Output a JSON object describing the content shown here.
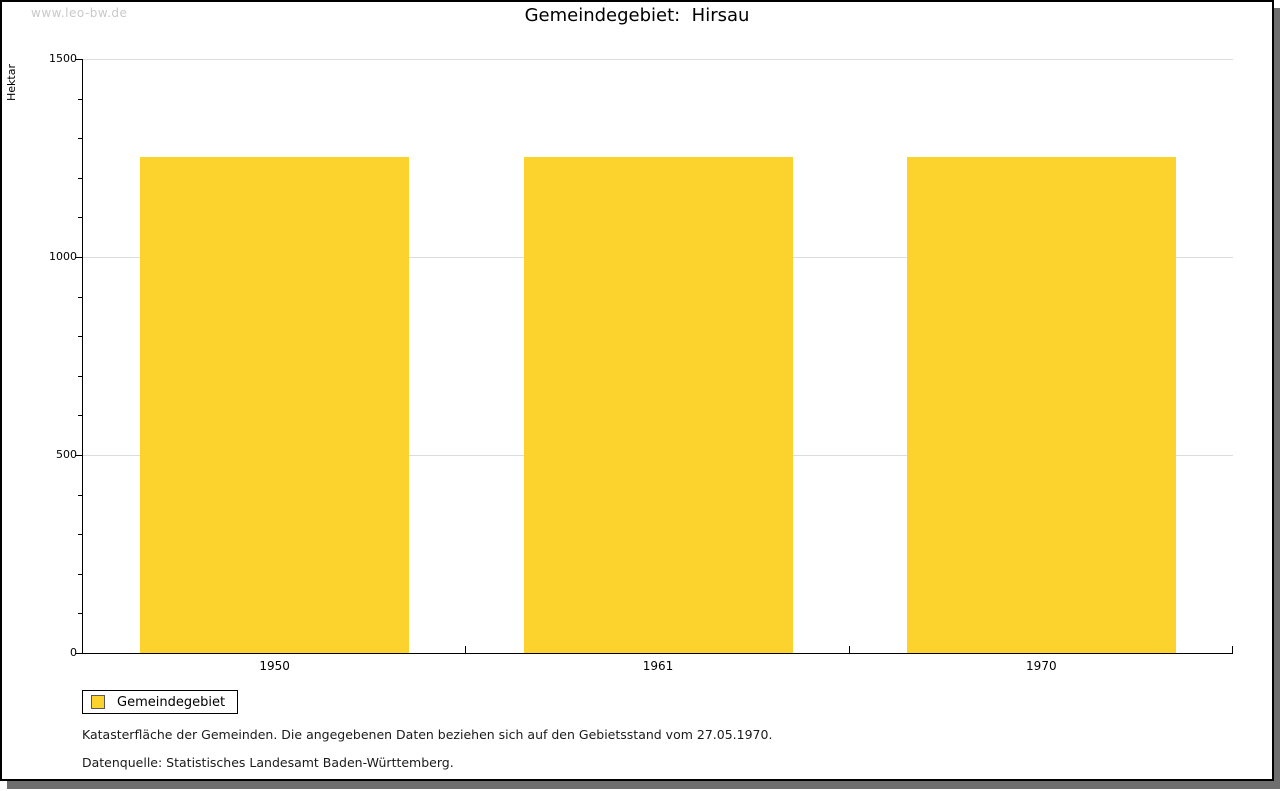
{
  "watermark": "www.leo-bw.de",
  "chart_data": {
    "type": "bar",
    "title": "Gemeindegebiet:  Hirsau",
    "ylabel": "Hektar",
    "categories": [
      "1950",
      "1961",
      "1970"
    ],
    "series": [
      {
        "name": "Gemeindegebiet",
        "color": "#FCD32C",
        "values": [
          1253,
          1253,
          1253
        ]
      }
    ],
    "ylim": [
      0,
      1500
    ],
    "y_major_ticks": [
      0,
      500,
      1000,
      1500
    ],
    "y_minor_step": 100,
    "grid": "horizontal-light-gray",
    "legend_position": "bottom-left",
    "footnotes": [
      "Katasterfläche der Gemeinden. Die angegebenen Daten beziehen sich auf den Gebietsstand vom 27.05.1970.",
      "Datenquelle: Statistisches Landesamt Baden-Württemberg."
    ]
  }
}
